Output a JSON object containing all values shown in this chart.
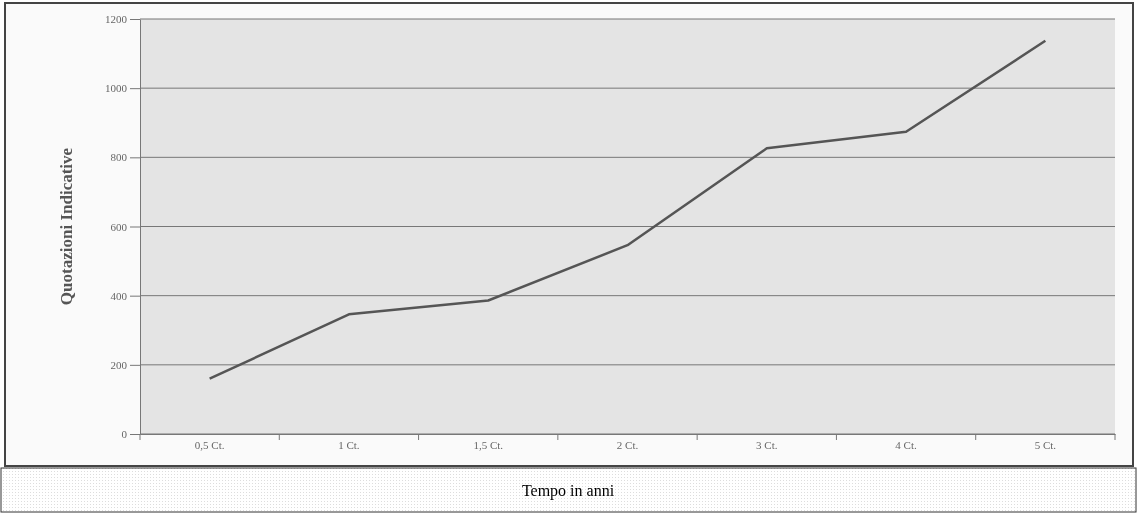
{
  "chart_data": {
    "type": "line",
    "xlabel": "Tempo in anni",
    "ylabel": "Quotazioni Indicative",
    "categories": [
      "0,5 Ct.",
      "1 Ct.",
      "1,5 Ct.",
      "2 Ct.",
      "3 Ct.",
      "4 Ct.",
      "5 Ct."
    ],
    "series": [
      {
        "color": "#555555",
        "values": [
          160,
          346,
          386,
          546,
          826,
          874,
          1137
        ]
      }
    ],
    "ylim": [
      0,
      1200
    ],
    "yticks": [
      0,
      200,
      400,
      600,
      800,
      1000,
      1200
    ],
    "grid": "y",
    "marker": "none",
    "line_style": "solid"
  }
}
